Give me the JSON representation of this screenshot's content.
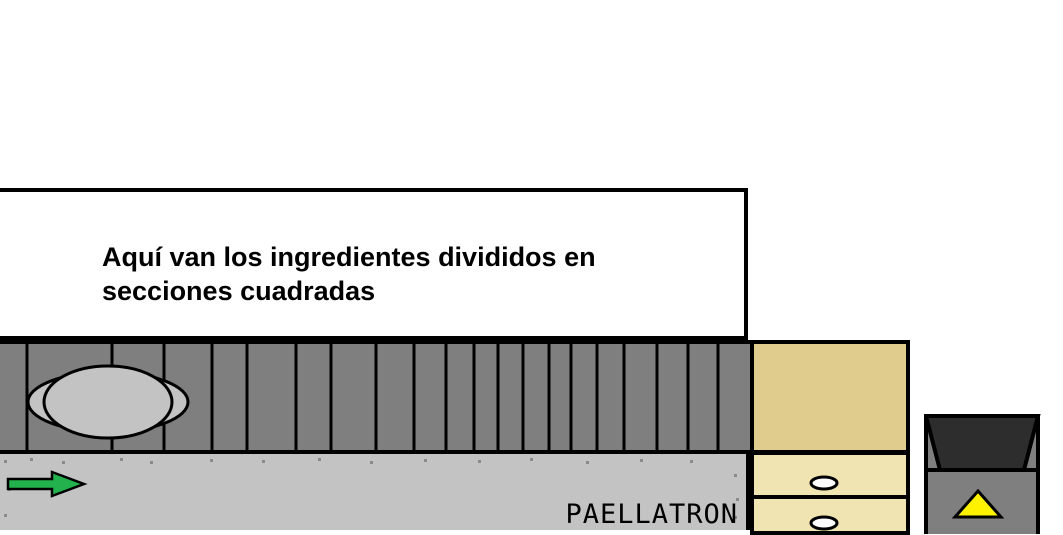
{
  "ingredients_panel": {
    "text": "Aquí van los ingredientes divididos en secciones cuadradas"
  },
  "machine": {
    "label": "PAELLATRON"
  },
  "colors": {
    "shelf_gray": "#7f7f7f",
    "conveyor_gray": "#c3c3c3",
    "cabinet_tan": "#e0cd8e",
    "drawer_cream": "#efe4b2",
    "arrow_green": "#22b14c",
    "bin_dark": "#2d2d2d",
    "button_yellow": "#fff200"
  },
  "icons": {
    "pan": "paella-pan-icon",
    "arrow": "green-arrow-right-icon",
    "drawer_handle": "drawer-handle-icon",
    "up_button": "yellow-triangle-up-icon"
  }
}
